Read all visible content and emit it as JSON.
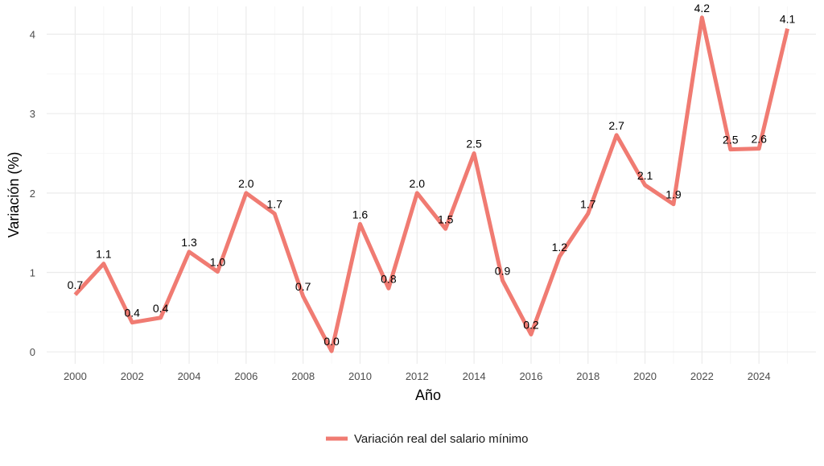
{
  "chart_data": {
    "type": "line",
    "x": [
      2000,
      2001,
      2002,
      2003,
      2004,
      2005,
      2006,
      2007,
      2008,
      2009,
      2010,
      2011,
      2012,
      2013,
      2014,
      2015,
      2016,
      2017,
      2018,
      2019,
      2020,
      2021,
      2022,
      2023,
      2024,
      2025
    ],
    "series": [
      {
        "name": "Variación real del salario mínimo",
        "color": "#F07B72",
        "values": [
          0.72,
          1.11,
          0.37,
          0.43,
          1.26,
          1.01,
          2.0,
          1.74,
          0.7,
          0.01,
          1.61,
          0.8,
          2.0,
          1.55,
          2.5,
          0.9,
          0.22,
          1.2,
          1.74,
          2.73,
          2.1,
          1.86,
          4.21,
          2.55,
          2.56,
          4.07
        ],
        "labels": [
          "0.7",
          "1.1",
          "0.4",
          "0.4",
          "1.3",
          "1.0",
          "2.0",
          "1.7",
          "0.7",
          "0.0",
          "1.6",
          "0.8",
          "2.0",
          "1.5",
          "2.5",
          "0.9",
          "0.2",
          "1.2",
          "1.7",
          "2.7",
          "2.1",
          "1.9",
          "4.2",
          "2.5",
          "2.6",
          "4.1"
        ]
      }
    ],
    "xlabel": "Año",
    "ylabel": "Variación (%)",
    "xlim": [
      1999,
      2026
    ],
    "ylim": [
      -0.15,
      4.35
    ],
    "x_ticks": [
      2000,
      2002,
      2004,
      2006,
      2008,
      2010,
      2012,
      2014,
      2016,
      2018,
      2020,
      2022,
      2024
    ],
    "y_ticks": [
      0,
      1,
      2,
      3,
      4
    ],
    "grid": true,
    "legend_position": "bottom"
  }
}
